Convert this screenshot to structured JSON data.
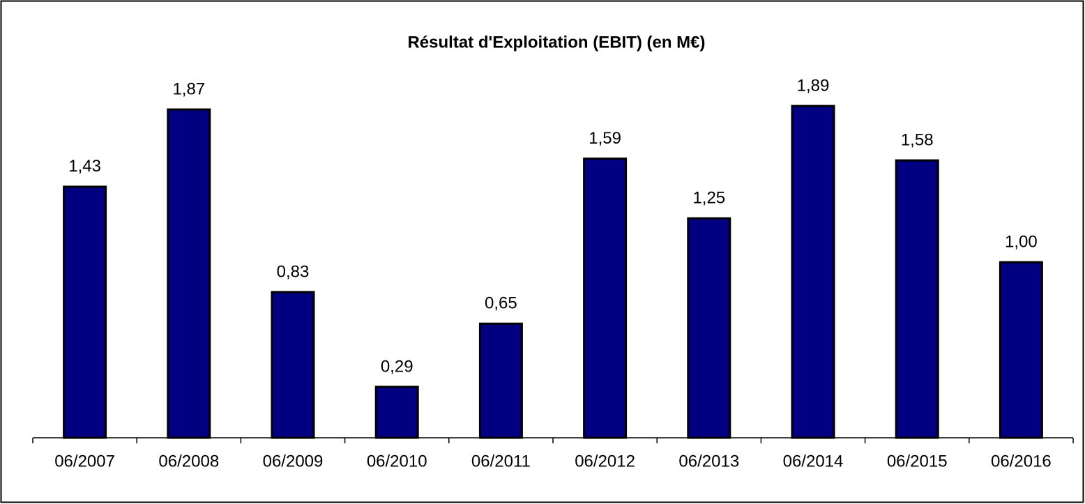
{
  "chart_data": {
    "type": "bar",
    "title": "Résultat d'Exploitation (EBIT) (en M€)",
    "categories": [
      "06/2007",
      "06/2008",
      "06/2009",
      "06/2010",
      "06/2011",
      "06/2012",
      "06/2013",
      "06/2014",
      "06/2015",
      "06/2016"
    ],
    "values": [
      1.43,
      1.87,
      0.83,
      0.29,
      0.65,
      1.59,
      1.25,
      1.89,
      1.58,
      1.0
    ],
    "value_labels": [
      "1,43",
      "1,87",
      "0,83",
      "0,29",
      "0,65",
      "1,59",
      "1,25",
      "1,89",
      "1,58",
      "1,00"
    ],
    "color": "#000080"
  }
}
